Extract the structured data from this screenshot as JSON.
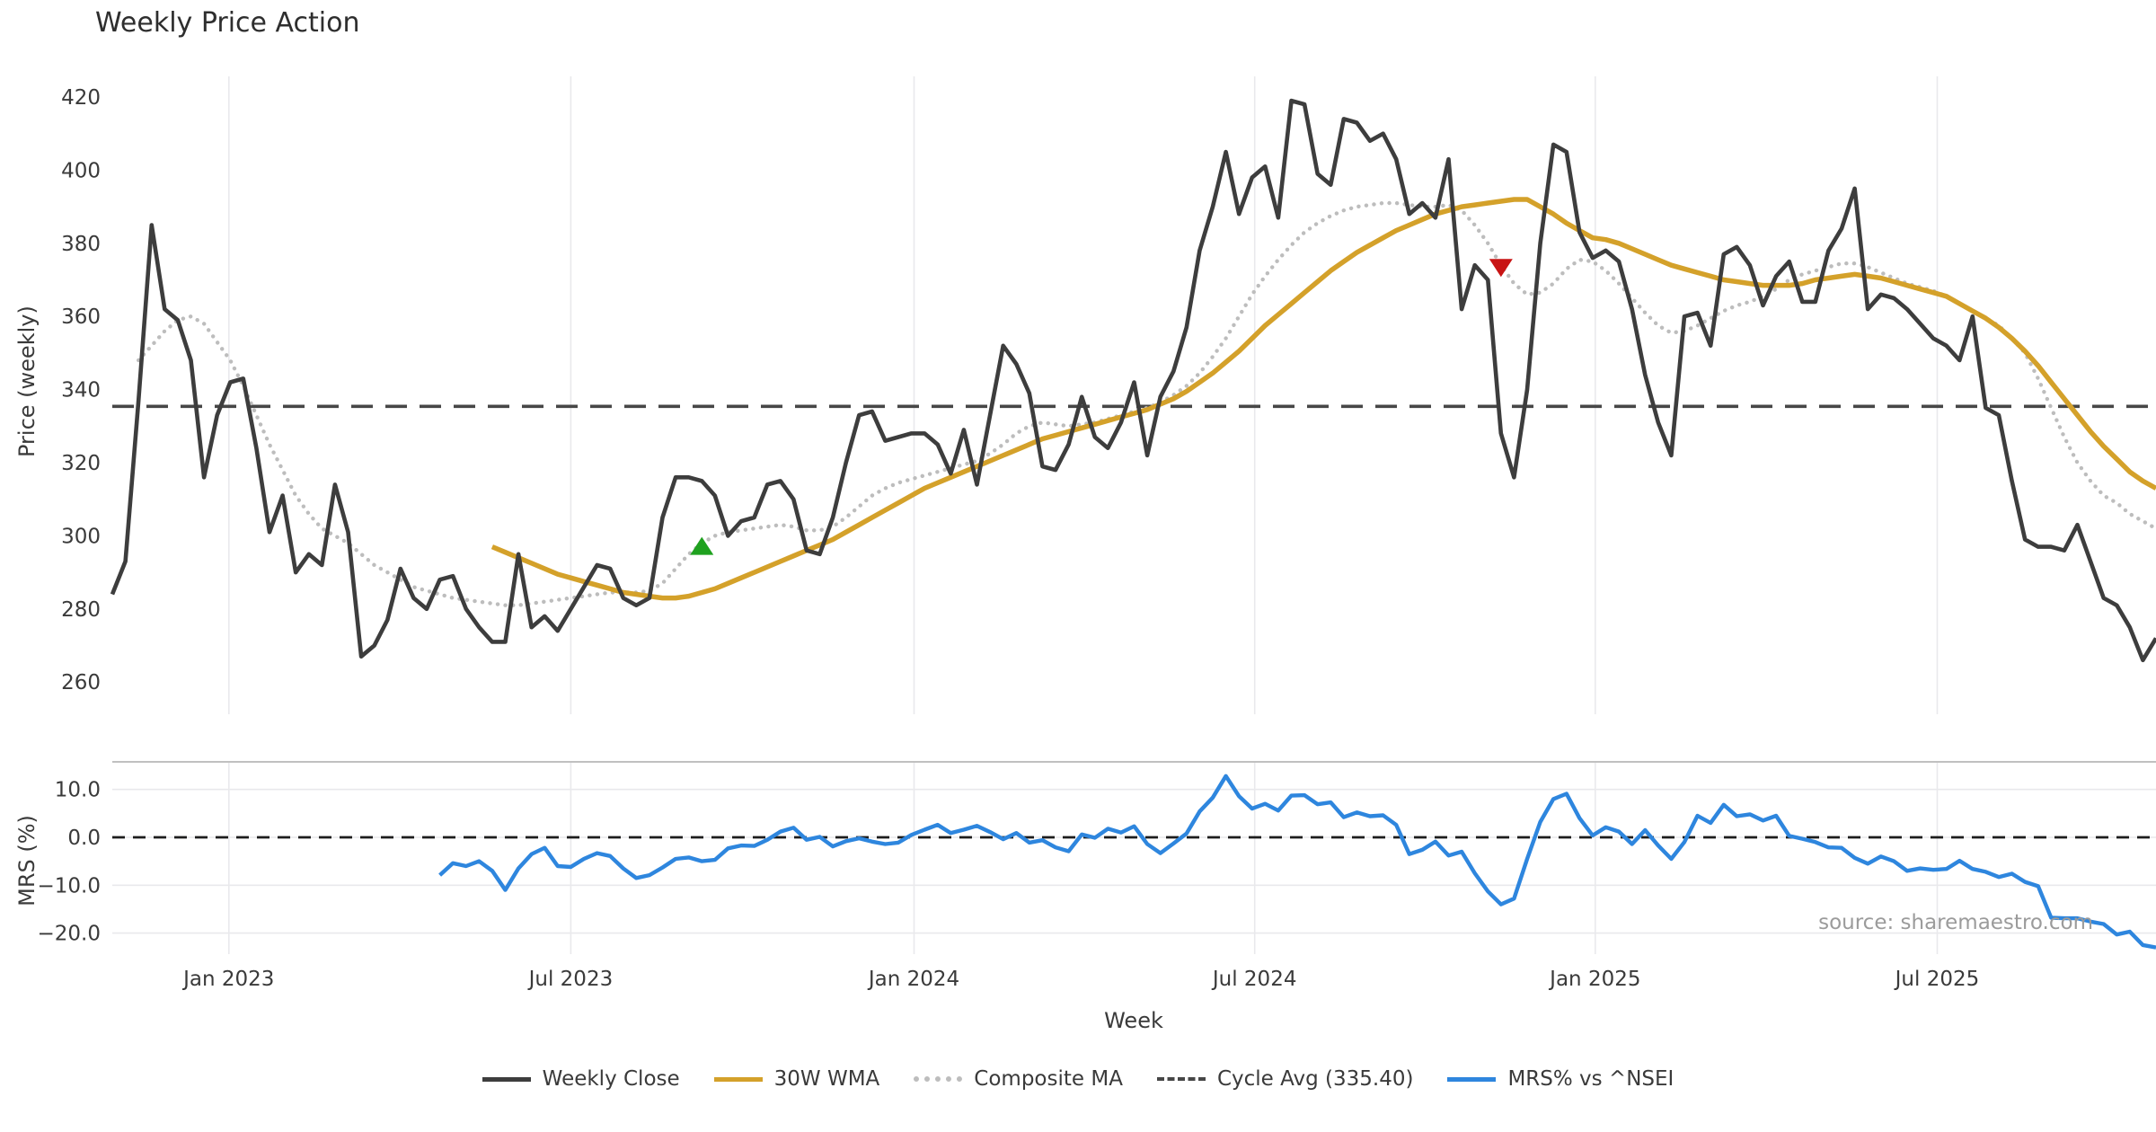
{
  "title": "Weekly Price Action",
  "source_note": "source: sharemaestro.com",
  "axes": {
    "price_axis_label": "Price (weekly)",
    "mrs_axis_label": "MRS (%)",
    "x_axis_label": "Week"
  },
  "colors": {
    "weekly_close": "#3d3d3d",
    "wma": "#d4a12a",
    "composite": "#bdbdbd",
    "cycle_avg": "#474747",
    "mrs": "#2e86de",
    "buy_marker": "#1fa11f",
    "sell_marker": "#c81414",
    "grid": "#e9e9ec",
    "panel_border": "#c0c0c0",
    "tick_text": "#3a3a3a"
  },
  "legend": [
    {
      "label": "Weekly Close",
      "style": "solid",
      "color": "#3d3d3d"
    },
    {
      "label": "30W WMA",
      "style": "solid",
      "color": "#d4a12a"
    },
    {
      "label": "Composite MA",
      "style": "dotted",
      "color": "#bdbdbd"
    },
    {
      "label": "Cycle Avg (335.40)",
      "style": "dashed",
      "color": "#474747"
    },
    {
      "label": "MRS% vs ^NSEI",
      "style": "solid",
      "color": "#2e86de"
    }
  ],
  "chart_data": [
    {
      "type": "line",
      "panel": "price",
      "title": "Weekly Price Action",
      "xlabel": "Week",
      "ylabel": "Price (weekly)",
      "grid": "vertical-only",
      "ylim": [
        251,
        426
      ],
      "y_ticks": [
        260,
        280,
        300,
        320,
        340,
        360,
        380,
        400,
        420
      ],
      "x_ticks": [
        {
          "week": 8.9,
          "label": "Jan 2023"
        },
        {
          "week": 35.0,
          "label": "Jul 2023"
        },
        {
          "week": 61.2,
          "label": "Jan 2024"
        },
        {
          "week": 87.2,
          "label": "Jul 2024"
        },
        {
          "week": 113.2,
          "label": "Jan 2025"
        },
        {
          "week": 139.3,
          "label": "Jul 2025"
        }
      ],
      "weeks_total": 157,
      "cycle_avg": 335.4,
      "series": [
        {
          "name": "Weekly Close",
          "start_week": 0,
          "values": [
            284,
            293,
            337,
            385,
            362,
            359,
            348,
            316,
            333,
            342,
            343,
            324,
            301,
            311,
            290,
            295,
            292,
            314,
            301,
            267,
            270,
            277,
            291,
            283,
            280,
            288,
            289,
            280,
            275,
            271,
            271,
            295,
            275,
            278,
            274,
            280,
            286,
            292,
            291,
            283,
            281,
            283,
            305,
            316,
            316,
            315,
            311,
            300,
            304,
            305,
            314,
            315,
            310,
            296,
            295,
            305,
            320,
            333,
            334,
            326,
            327,
            328,
            328,
            325,
            317,
            329,
            314,
            333,
            352,
            347,
            339,
            319,
            318,
            325,
            338,
            327,
            324,
            331,
            342,
            322,
            338,
            345,
            357,
            378,
            390,
            405,
            388,
            398,
            401,
            387,
            419,
            418,
            399,
            396,
            414,
            413,
            408,
            410,
            403,
            388,
            391,
            387,
            403,
            362,
            374,
            370,
            328,
            316,
            340,
            380,
            407,
            405,
            383,
            376,
            378,
            375,
            362,
            344,
            331,
            322,
            360,
            361,
            352,
            377,
            379,
            374,
            363,
            371,
            375,
            364,
            364,
            378,
            384,
            395,
            362,
            366,
            365,
            362,
            358,
            354,
            352,
            348,
            360,
            335,
            333,
            315,
            299,
            297,
            297,
            296,
            303,
            293,
            283,
            281,
            275,
            266,
            272
          ]
        },
        {
          "name": "30W WMA",
          "start_week": 29,
          "values": [
            297,
            295.5,
            294,
            292.5,
            291,
            289.5,
            288.5,
            287.5,
            286.5,
            285.5,
            284.5,
            284,
            283.5,
            283,
            283,
            283.5,
            284.5,
            285.5,
            287,
            288.5,
            290,
            291.5,
            293,
            294.5,
            296,
            297.5,
            299,
            301,
            303,
            305,
            307,
            309,
            311,
            313,
            314.5,
            316,
            317.5,
            319,
            320.5,
            322,
            323.5,
            325,
            326.5,
            327.5,
            328.5,
            329.5,
            330.5,
            331.5,
            332.5,
            333.5,
            334.5,
            336,
            337.5,
            339.5,
            342,
            344.5,
            347.5,
            350.5,
            354,
            357.5,
            360.5,
            363.5,
            366.5,
            369.5,
            372.5,
            375,
            377.5,
            379.5,
            381.5,
            383.5,
            385,
            386.5,
            388,
            389,
            390,
            390.5,
            391,
            391.5,
            392,
            392,
            390,
            388,
            385.5,
            383.5,
            381.5,
            381,
            380,
            378.5,
            377,
            375.5,
            374,
            373,
            372,
            371,
            370,
            369.5,
            369,
            368.5,
            368.5,
            368.5,
            369,
            370,
            370.5,
            371,
            371.5,
            371,
            370.5,
            369.5,
            368.5,
            367.5,
            366.5,
            365.5,
            363.5,
            361.5,
            359.5,
            357,
            354,
            350.5,
            346.5,
            342,
            337.5,
            333,
            328.5,
            324.5,
            321,
            317.5,
            315,
            313
          ]
        },
        {
          "name": "Composite MA",
          "start_week": 2,
          "values": [
            348,
            352,
            356,
            359,
            360,
            358,
            353,
            348,
            341,
            333,
            325,
            318,
            311,
            306,
            302,
            300,
            298,
            295,
            292,
            290,
            288,
            286,
            285,
            284,
            283,
            282.5,
            282,
            281.5,
            281,
            281,
            281.5,
            282,
            282.5,
            283,
            283.5,
            284,
            284.5,
            284.5,
            284.5,
            285,
            287,
            291,
            295,
            298,
            300,
            301,
            301.5,
            302,
            302.5,
            303,
            302.5,
            301.5,
            301.5,
            302.5,
            305,
            308,
            311,
            313,
            314.5,
            315.5,
            316.5,
            317.5,
            318.5,
            319.5,
            320.5,
            322.5,
            325,
            328,
            330,
            331,
            330.5,
            330,
            330.5,
            331,
            332,
            333,
            334,
            335,
            336.5,
            338.5,
            341,
            344.5,
            349,
            354,
            360,
            366,
            371,
            375.5,
            379.5,
            383,
            385.5,
            387.5,
            389,
            390,
            390.5,
            391,
            391,
            390.5,
            390,
            390,
            390.5,
            389,
            385,
            380,
            374,
            369,
            366,
            366.5,
            369,
            373,
            375.5,
            375,
            372.5,
            369,
            365,
            361,
            357.5,
            355.5,
            356,
            357.5,
            359.5,
            361.5,
            363,
            364,
            365.5,
            367.5,
            370,
            371.5,
            372.5,
            373.5,
            374.5,
            374.5,
            373.5,
            372,
            370.5,
            369,
            368,
            367,
            365.5,
            363.5,
            361.5,
            359.5,
            357.5,
            354,
            350,
            343,
            335,
            327,
            320,
            315,
            311,
            309,
            306,
            304,
            302
          ]
        }
      ],
      "markers": [
        {
          "type": "buy-signal",
          "shape": "triangle-up",
          "week": 45,
          "price": 297,
          "color": "#1fa11f"
        },
        {
          "type": "sell-signal",
          "shape": "triangle-down",
          "week": 106,
          "price": 373.5,
          "color": "#c81414"
        }
      ]
    },
    {
      "type": "line",
      "panel": "mrs",
      "ylabel": "MRS (%)",
      "ylim": [
        -25,
        15.5
      ],
      "y_ticks": [
        10.0,
        0.0,
        -10.0,
        -20.0
      ],
      "y_tick_labels": [
        "10.0",
        "0.0",
        "−10.0",
        "−20.0"
      ],
      "zero_line": 0,
      "series": [
        {
          "name": "MRS% vs ^NSEI",
          "start_week": 25,
          "values": [
            -7.9,
            -5.4,
            -6.0,
            -5.0,
            -7.0,
            -11.0,
            -6.5,
            -3.5,
            -2.2,
            -6.0,
            -6.2,
            -4.5,
            -3.3,
            -3.9,
            -6.5,
            -8.5,
            -7.9,
            -6.3,
            -4.5,
            -4.2,
            -5.0,
            -4.7,
            -2.3,
            -1.7,
            -1.8,
            -0.5,
            1.2,
            2.0,
            -0.5,
            0.1,
            -1.9,
            -0.8,
            -0.2,
            -0.9,
            -1.4,
            -1.1,
            0.5,
            1.6,
            2.6,
            0.9,
            1.6,
            2.4,
            1.1,
            -0.4,
            0.9,
            -1.1,
            -0.6,
            -2.1,
            -2.9,
            0.6,
            -0.1,
            1.8,
            1.0,
            2.3,
            -1.4,
            -3.3,
            -1.3,
            0.8,
            5.4,
            8.3,
            12.8,
            8.6,
            6.0,
            7.0,
            5.6,
            8.7,
            8.8,
            6.9,
            7.3,
            4.2,
            5.2,
            4.4,
            4.6,
            2.6,
            -3.5,
            -2.6,
            -0.9,
            -3.8,
            -3.0,
            -7.5,
            -11.3,
            -14.0,
            -12.8,
            -4.5,
            3.2,
            8.0,
            9.1,
            4.0,
            0.4,
            2.1,
            1.2,
            -1.4,
            1.5,
            -1.7,
            -4.5,
            -1.0,
            4.5,
            3.0,
            6.8,
            4.4,
            4.8,
            3.5,
            4.5,
            0.3,
            -0.3,
            -1.0,
            -2.1,
            -2.2,
            -4.3,
            -5.5,
            -4.0,
            -5.0,
            -7.0,
            -6.5,
            -6.8,
            -6.6,
            -4.9,
            -6.6,
            -7.2,
            -8.3,
            -7.6,
            -9.3,
            -10.2,
            -16.8,
            -16.9,
            -16.9,
            -17.6,
            -18.1,
            -20.3,
            -19.7,
            -22.5,
            -23.0
          ]
        }
      ]
    }
  ]
}
